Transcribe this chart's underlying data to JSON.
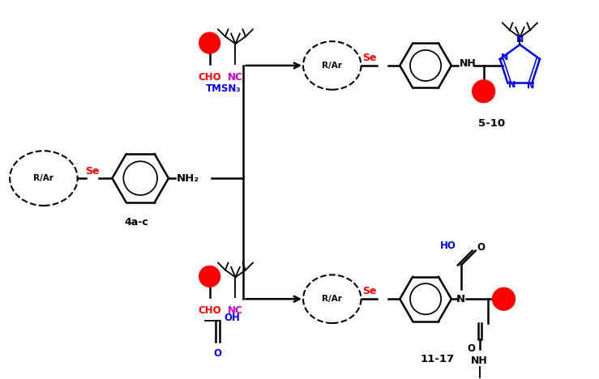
{
  "fig_width": 7.39,
  "fig_height": 4.68,
  "dpi": 100,
  "bg_color": "#ffffff",
  "black": "#000000",
  "red": "#ff0000",
  "blue": "#0000ff",
  "magenta": "#cc00cc",
  "label_4ac": "4a-c",
  "label_510": "5-10",
  "label_1117": "11-17",
  "label_tmsn3": "TMSN₃",
  "label_cho": "CHO",
  "label_nc": "NC",
  "label_se": "Se",
  "label_nh2": "NH₂",
  "label_nh": "NH",
  "label_ho": "HO",
  "label_oh": "OH",
  "label_rar": "R/Ar",
  "label_n": "N",
  "label_o": "O",
  "lw": 1.8,
  "lw_thin": 1.3
}
